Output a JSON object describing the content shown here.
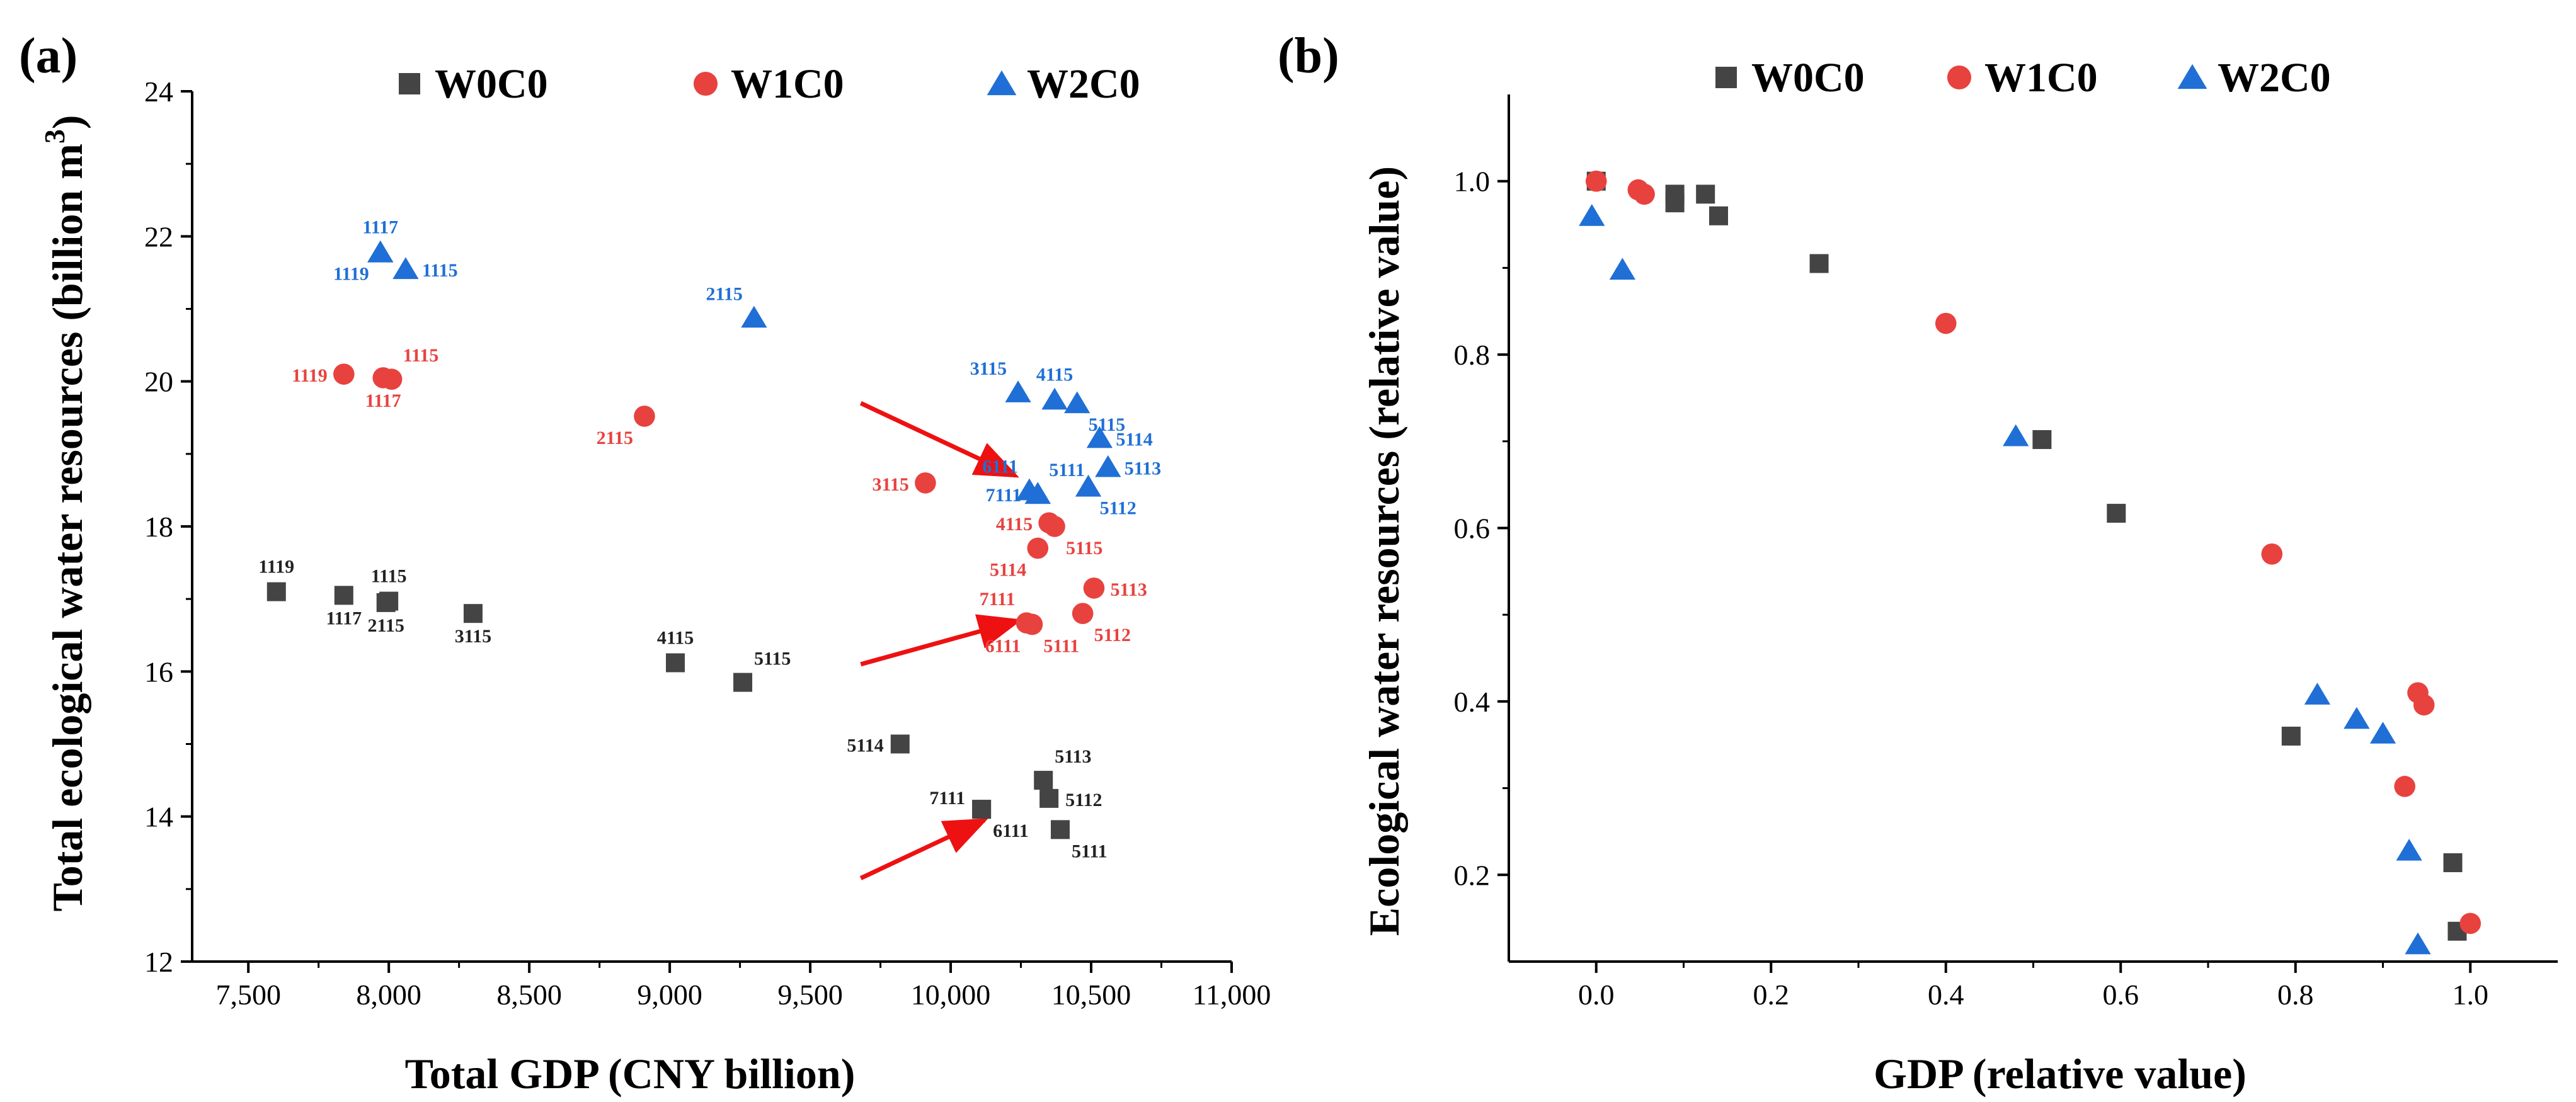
{
  "colors": {
    "W0C0": "#444444",
    "W1C0": "#e8423f",
    "W2C0": "#1f6fd6",
    "arrow": "#ee1111"
  },
  "chart_data": [
    {
      "type": "scatter",
      "panel_label": "(a)",
      "xlabel": "Total GDP (CNY billion)",
      "ylabel_main": "Total ecological water resources (billion m",
      "ylabel_sup": "3",
      "ylabel_close": ")",
      "xlim": [
        7300,
        11000
      ],
      "ylim": [
        12,
        24
      ],
      "xticks": [
        7500,
        8000,
        8500,
        9000,
        9500,
        10000,
        10500,
        11000
      ],
      "xtick_labels": [
        "7,500",
        "8,000",
        "8,500",
        "9,000",
        "9,500",
        "10,000",
        "10,500",
        "11,000"
      ],
      "yticks": [
        12,
        14,
        16,
        18,
        20,
        22,
        24
      ],
      "ytick_labels": [
        "12",
        "14",
        "16",
        "18",
        "20",
        "22",
        "24"
      ],
      "legend": [
        "W0C0",
        "W1C0",
        "W2C0"
      ],
      "series": [
        {
          "name": "W0C0",
          "marker": "square",
          "points": [
            {
              "x": 7600,
              "y": 17.1,
              "label": "1119",
              "pos": "above"
            },
            {
              "x": 7840,
              "y": 17.05,
              "label": "1117",
              "pos": "below"
            },
            {
              "x": 7990,
              "y": 16.95,
              "label": "2115",
              "pos": "below"
            },
            {
              "x": 8000,
              "y": 16.97,
              "label": "1115",
              "pos": "above"
            },
            {
              "x": 8300,
              "y": 16.8,
              "label": "3115",
              "pos": "below"
            },
            {
              "x": 9020,
              "y": 16.12,
              "label": "4115",
              "pos": "above"
            },
            {
              "x": 9260,
              "y": 15.85,
              "label": "5115",
              "pos": "above-right"
            },
            {
              "x": 9820,
              "y": 15.0,
              "label": "5114",
              "pos": "left"
            },
            {
              "x": 10330,
              "y": 14.5,
              "label": "5113",
              "pos": "above-right"
            },
            {
              "x": 10350,
              "y": 14.25,
              "label": "5112",
              "pos": "right"
            },
            {
              "x": 10110,
              "y": 14.1,
              "label": "7111",
              "pos": "left-up"
            },
            {
              "x": 10110,
              "y": 14.1,
              "label": "6111",
              "pos": "below-right"
            },
            {
              "x": 10390,
              "y": 13.82,
              "label": "5111",
              "pos": "below-right"
            }
          ]
        },
        {
          "name": "W1C0",
          "marker": "circle",
          "points": [
            {
              "x": 7840,
              "y": 20.1,
              "label": "1119",
              "pos": "left"
            },
            {
              "x": 7980,
              "y": 20.05,
              "label": "1117",
              "pos": "below"
            },
            {
              "x": 8010,
              "y": 20.03,
              "label": "1115",
              "pos": "above-right"
            },
            {
              "x": 8910,
              "y": 19.52,
              "label": "2115",
              "pos": "below-left"
            },
            {
              "x": 9910,
              "y": 18.6,
              "label": "3115",
              "pos": "left"
            },
            {
              "x": 10350,
              "y": 18.05,
              "label": "4115",
              "pos": "left"
            },
            {
              "x": 10370,
              "y": 18.0,
              "label": "5115",
              "pos": "below-right"
            },
            {
              "x": 10310,
              "y": 17.7,
              "label": "5114",
              "pos": "below-left"
            },
            {
              "x": 10510,
              "y": 17.15,
              "label": "5113",
              "pos": "right"
            },
            {
              "x": 10470,
              "y": 16.8,
              "label": "5112",
              "pos": "below-right"
            },
            {
              "x": 10270,
              "y": 16.67,
              "label": "7111",
              "pos": "above-left"
            },
            {
              "x": 10290,
              "y": 16.65,
              "label": "6111",
              "pos": "below-left"
            },
            {
              "x": 10290,
              "y": 16.65,
              "label": "5111",
              "pos": "below-right"
            }
          ]
        },
        {
          "name": "W2C0",
          "marker": "triangle",
          "points": [
            {
              "x": 7970,
              "y": 21.78,
              "label": "1117",
              "pos": "above"
            },
            {
              "x": 7970,
              "y": 21.78,
              "label": "1119",
              "pos": "below-left"
            },
            {
              "x": 8060,
              "y": 21.55,
              "label": "1115",
              "pos": "right"
            },
            {
              "x": 9300,
              "y": 20.88,
              "label": "2115",
              "pos": "above-left"
            },
            {
              "x": 10240,
              "y": 19.85,
              "label": "3115",
              "pos": "above-left"
            },
            {
              "x": 10370,
              "y": 19.75,
              "label": "4115",
              "pos": "above"
            },
            {
              "x": 10450,
              "y": 19.7,
              "label": "5115",
              "pos": "below-right"
            },
            {
              "x": 10530,
              "y": 19.22,
              "label": "5114",
              "pos": "right"
            },
            {
              "x": 10280,
              "y": 18.5,
              "label": "6111",
              "pos": "above-left"
            },
            {
              "x": 10310,
              "y": 18.45,
              "label": "5111",
              "pos": "above-right"
            },
            {
              "x": 10310,
              "y": 18.45,
              "label": "7111",
              "pos": "left"
            },
            {
              "x": 10560,
              "y": 18.82,
              "label": "5113",
              "pos": "right"
            },
            {
              "x": 10490,
              "y": 18.55,
              "label": "5112",
              "pos": "below-right"
            }
          ]
        }
      ],
      "annotations": [
        {
          "type": "arrow",
          "x1": 9680,
          "y1": 19.7,
          "x2": 10230,
          "y2": 18.7
        },
        {
          "type": "arrow",
          "x1": 9680,
          "y1": 16.1,
          "x2": 10240,
          "y2": 16.7
        },
        {
          "type": "arrow",
          "x1": 9680,
          "y1": 13.15,
          "x2": 10120,
          "y2": 13.95
        }
      ]
    },
    {
      "type": "scatter",
      "panel_label": "(b)",
      "xlabel": "GDP (relative value)",
      "ylabel": "Ecological water resources (relative value)",
      "xlim": [
        -0.1,
        1.1
      ],
      "ylim": [
        0.1,
        1.1
      ],
      "xticks": [
        0.0,
        0.2,
        0.4,
        0.6,
        0.8,
        1.0
      ],
      "xtick_labels": [
        "0.0",
        "0.2",
        "0.4",
        "0.6",
        "0.8",
        "1.0"
      ],
      "yticks": [
        0.2,
        0.4,
        0.6,
        0.8,
        1.0
      ],
      "ytick_labels": [
        "0.2",
        "0.4",
        "0.6",
        "0.8",
        "1.0"
      ],
      "legend": [
        "W0C0",
        "W1C0",
        "W2C0"
      ],
      "series": [
        {
          "name": "W0C0",
          "marker": "square",
          "points": [
            {
              "x": 0.0,
              "y": 1.0
            },
            {
              "x": 0.09,
              "y": 0.985
            },
            {
              "x": 0.09,
              "y": 0.975
            },
            {
              "x": 0.125,
              "y": 0.985
            },
            {
              "x": 0.14,
              "y": 0.96
            },
            {
              "x": 0.255,
              "y": 0.905
            },
            {
              "x": 0.51,
              "y": 0.702
            },
            {
              "x": 0.595,
              "y": 0.617
            },
            {
              "x": 0.795,
              "y": 0.36
            },
            {
              "x": 0.98,
              "y": 0.214
            },
            {
              "x": 0.985,
              "y": 0.135
            }
          ]
        },
        {
          "name": "W1C0",
          "marker": "circle",
          "points": [
            {
              "x": 0.0,
              "y": 1.0
            },
            {
              "x": 0.048,
              "y": 0.99
            },
            {
              "x": 0.055,
              "y": 0.985
            },
            {
              "x": 0.4,
              "y": 0.836
            },
            {
              "x": 0.773,
              "y": 0.57
            },
            {
              "x": 0.925,
              "y": 0.302
            },
            {
              "x": 0.94,
              "y": 0.41
            },
            {
              "x": 0.947,
              "y": 0.396
            },
            {
              "x": 1.0,
              "y": 0.144
            }
          ]
        },
        {
          "name": "W2C0",
          "marker": "triangle",
          "points": [
            {
              "x": -0.005,
              "y": 0.96
            },
            {
              "x": 0.03,
              "y": 0.898
            },
            {
              "x": 0.48,
              "y": 0.706
            },
            {
              "x": 0.825,
              "y": 0.408
            },
            {
              "x": 0.87,
              "y": 0.38
            },
            {
              "x": 0.9,
              "y": 0.363
            },
            {
              "x": 0.93,
              "y": 0.228
            },
            {
              "x": 0.94,
              "y": 0.12
            }
          ]
        }
      ]
    }
  ]
}
